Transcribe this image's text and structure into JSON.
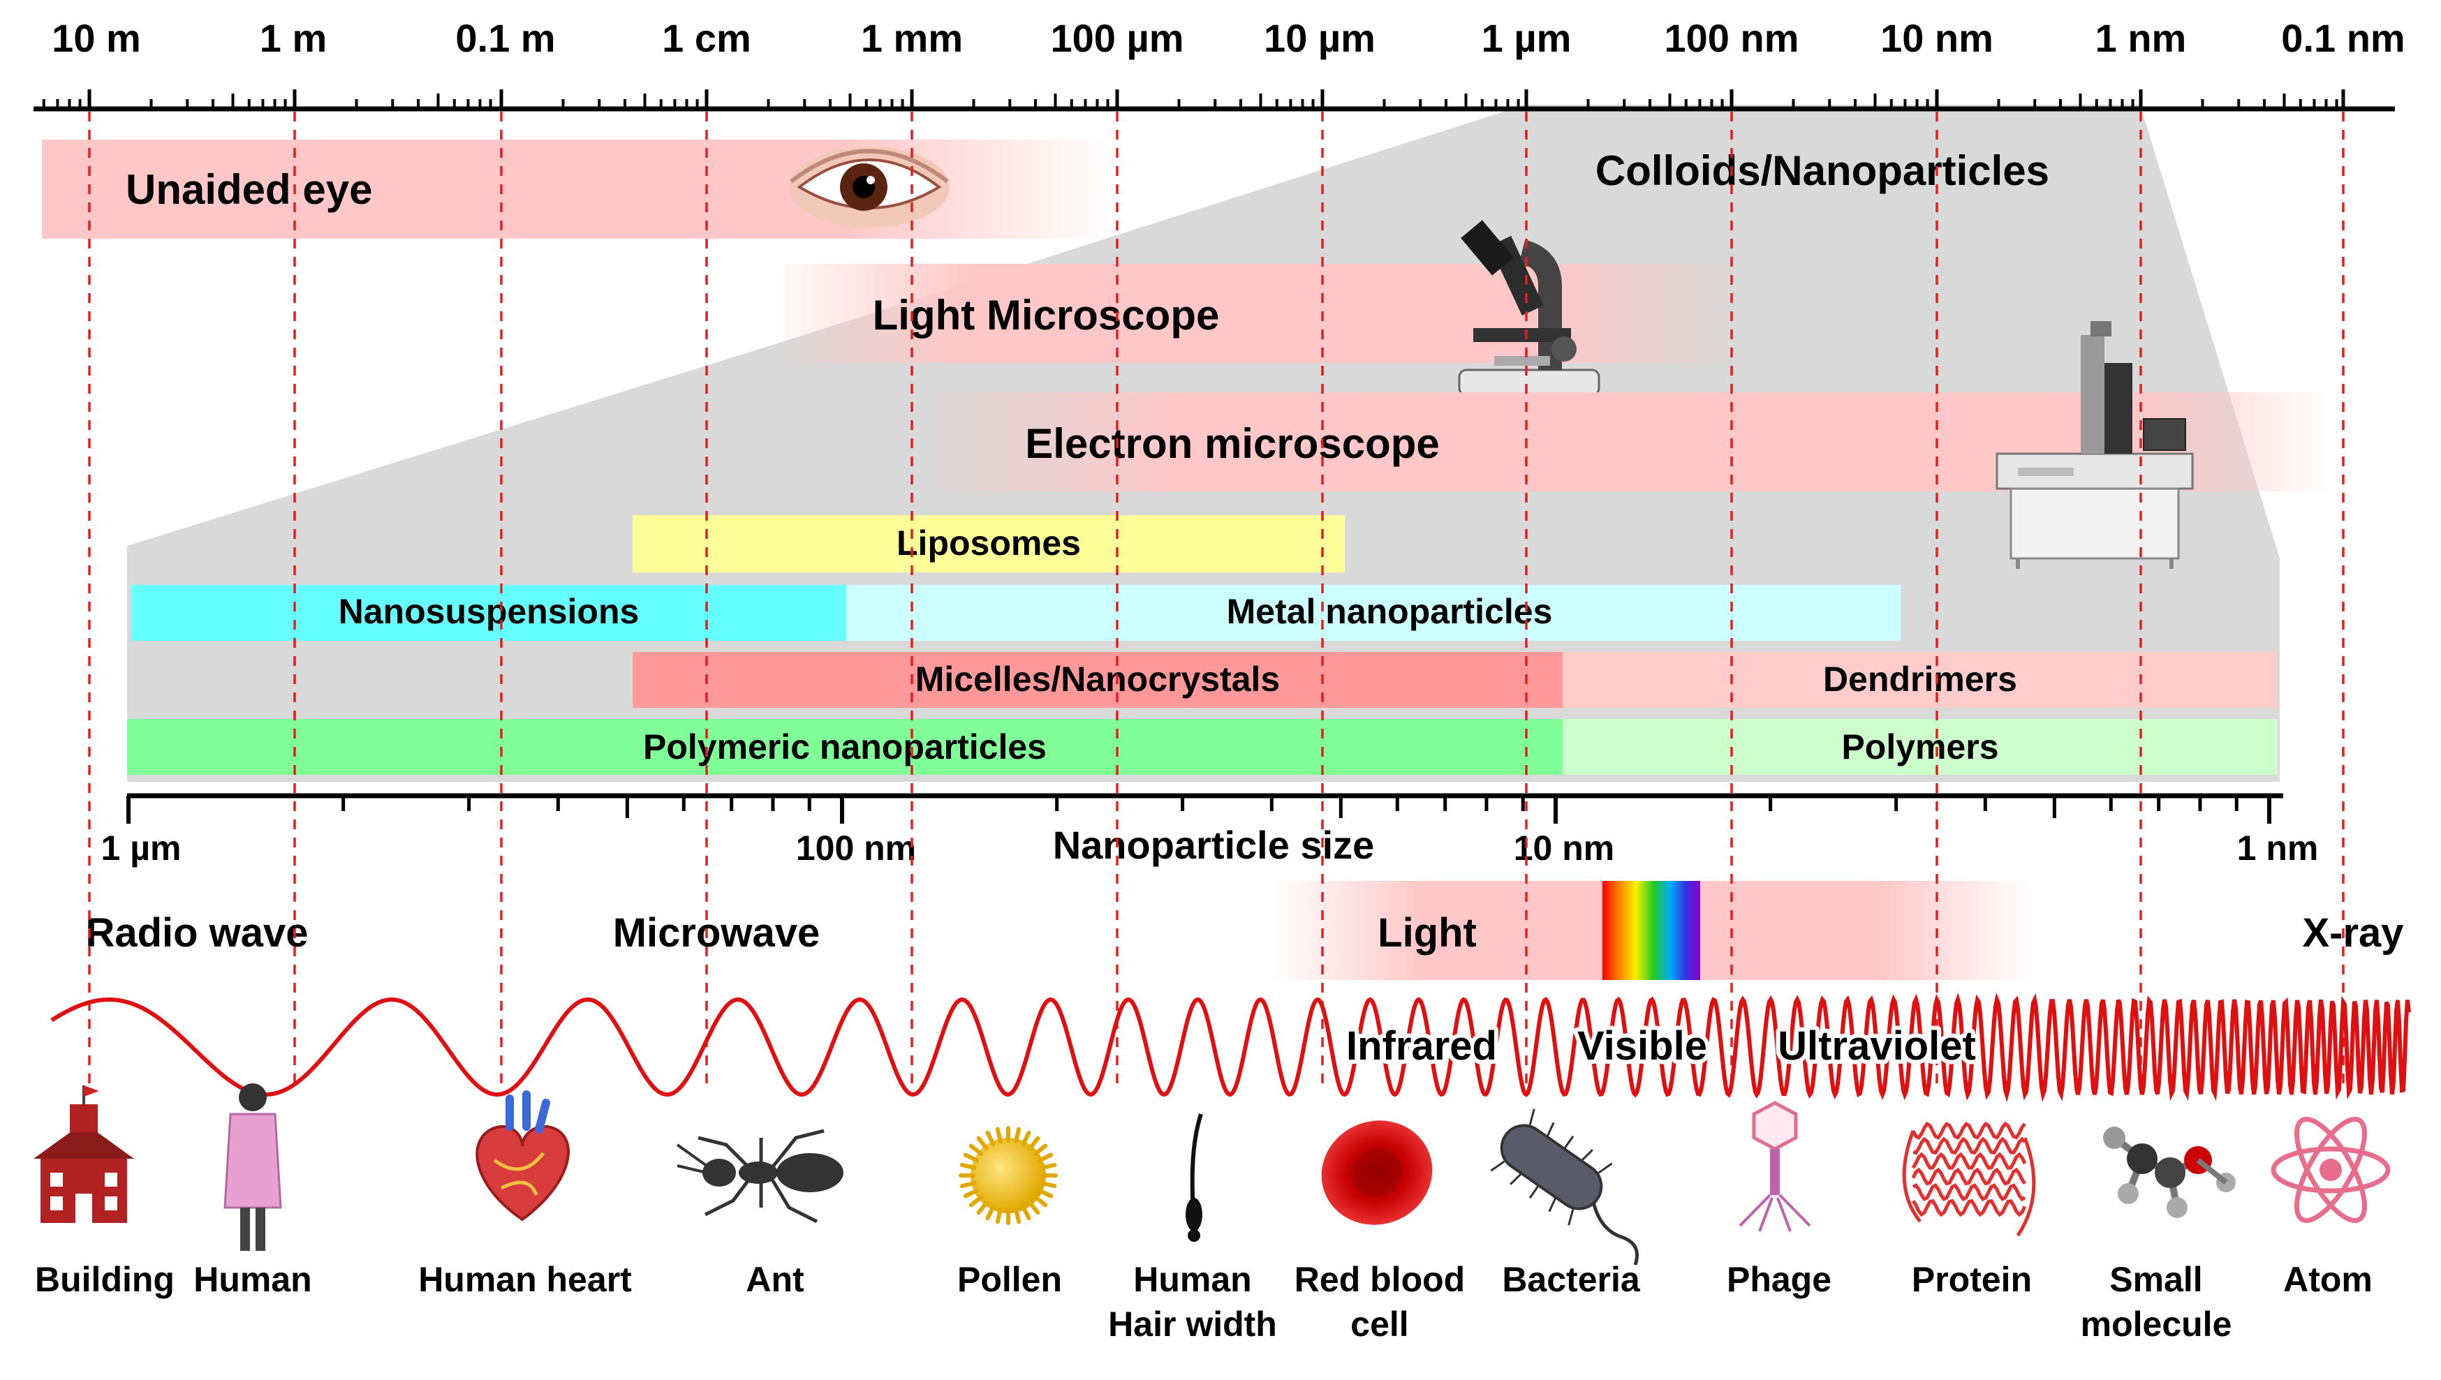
{
  "top_scale": {
    "labels": [
      "10 m",
      "1 m",
      "0.1 m",
      "1 cm",
      "1 mm",
      "100 µm",
      "10 µm",
      "1 µm",
      "100 nm",
      "10 nm",
      "1 nm",
      "0.1 nm"
    ]
  },
  "observation": {
    "unaided_eye": "Unaided eye",
    "colloids": "Colloids/Nanoparticles",
    "light_microscope": "Light Microscope",
    "electron_microscope": "Electron microscope"
  },
  "nanoparticles": {
    "liposomes": "Liposomes",
    "nanosuspensions": "Nanosuspensions",
    "metal_nanoparticles": "Metal nanoparticles",
    "micelles": "Micelles/Nanocrystals",
    "dendrimers": "Dendrimers",
    "polymeric": "Polymeric nanoparticles",
    "polymers": "Polymers"
  },
  "nano_axis": {
    "title": "Nanoparticle size",
    "labels": [
      "1 µm",
      "100 nm",
      "10 nm",
      "1 nm"
    ]
  },
  "spectrum": {
    "radio": "Radio wave",
    "microwave": "Microwave",
    "light": "Light",
    "xray": "X-ray",
    "infrared": "Infrared",
    "visible": "Visible",
    "ultraviolet": "Ultraviolet"
  },
  "objects": [
    {
      "line1": "Building",
      "line2": ""
    },
    {
      "line1": "Human",
      "line2": ""
    },
    {
      "line1": "Human heart",
      "line2": ""
    },
    {
      "line1": "Ant",
      "line2": ""
    },
    {
      "line1": "Pollen",
      "line2": ""
    },
    {
      "line1": "Human",
      "line2": "Hair width"
    },
    {
      "line1": "Red blood",
      "line2": "cell"
    },
    {
      "line1": "Bacteria",
      "line2": ""
    },
    {
      "line1": "Phage",
      "line2": ""
    },
    {
      "line1": "Protein",
      "line2": ""
    },
    {
      "line1": "Small",
      "line2": "molecule"
    },
    {
      "line1": "Atom",
      "line2": ""
    }
  ],
  "colors": {
    "axis": "#000000",
    "guide": "#e02020",
    "wave": "#e01010",
    "gray_panel": "#d9d9d9",
    "pink_band": "#ffc7c7",
    "liposomes": "#ffff99",
    "nanosuspensions": "#66ffff",
    "metal": "#ccffff",
    "micelles": "#ff9999",
    "dendrimers": "#ffcccc",
    "polymeric": "#80ff99",
    "polymers": "#ccffcc"
  }
}
